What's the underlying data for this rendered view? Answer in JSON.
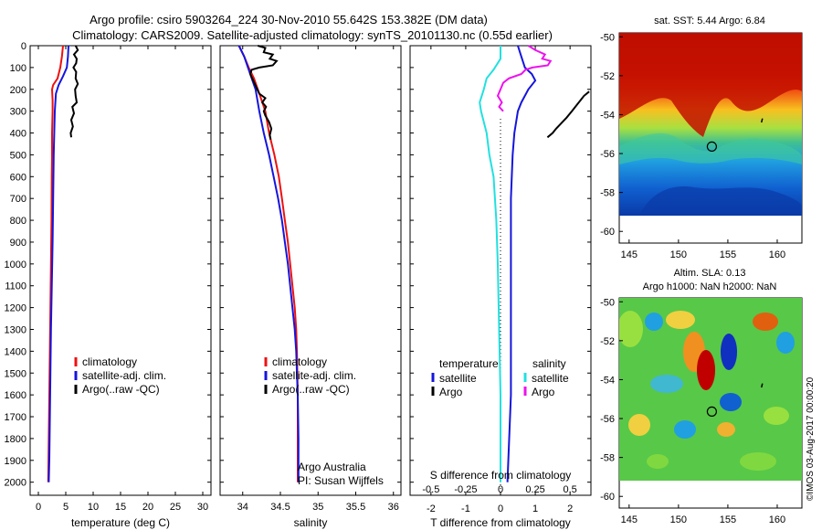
{
  "header": {
    "line1": "Argo profile: csiro 5903264_224 30-Nov-2010 55.642S 153.382E (DM data)",
    "line2": "Climatology: CARS2009. Satellite-adjusted climatology: synTS_20101130.nc (0.55d earlier)"
  },
  "colors": {
    "climatology": "#ee1111",
    "satellite": "#1515dd",
    "argo": "#000000",
    "temp_diff_satellite": "#1515dd",
    "salt_diff_satellite": "#22e0e0",
    "salt_diff_argo": "#ee11ee"
  },
  "chart_data": [
    {
      "id": "temperature",
      "type": "line",
      "xlabel": "temperature (deg C)",
      "ylabel": "",
      "xlim": [
        -1.5,
        31.5
      ],
      "ylim": [
        2060,
        0
      ],
      "xticks": [
        0,
        5,
        10,
        15,
        20,
        25,
        30
      ],
      "yticks": [
        0,
        100,
        200,
        300,
        400,
        500,
        600,
        700,
        800,
        900,
        1000,
        1100,
        1200,
        1300,
        1400,
        1500,
        1600,
        1700,
        1800,
        1900,
        2000
      ],
      "legend": {
        "position": "lower-middle",
        "entries": [
          "climatology",
          "satellite-adj. clim.",
          "Argo(..raw -QC)"
        ]
      },
      "series": [
        {
          "name": "climatology",
          "color_key": "climatology",
          "points": [
            [
              4.5,
              0
            ],
            [
              4.3,
              50
            ],
            [
              4.0,
              100
            ],
            [
              3.5,
              150
            ],
            [
              2.7,
              180
            ],
            [
              2.5,
              200
            ],
            [
              2.6,
              250
            ],
            [
              2.6,
              300
            ],
            [
              2.5,
              400
            ],
            [
              2.5,
              500
            ],
            [
              2.45,
              600
            ],
            [
              2.4,
              800
            ],
            [
              2.3,
              1000
            ],
            [
              2.2,
              1200
            ],
            [
              2.1,
              1400
            ],
            [
              2.0,
              1600
            ],
            [
              1.9,
              1800
            ],
            [
              1.8,
              2000
            ]
          ]
        },
        {
          "name": "satellite-adj. clim.",
          "color_key": "satellite",
          "points": [
            [
              5.5,
              0
            ],
            [
              5.4,
              50
            ],
            [
              5.2,
              100
            ],
            [
              4.5,
              140
            ],
            [
              3.7,
              180
            ],
            [
              3.2,
              220
            ],
            [
              3.0,
              300
            ],
            [
              2.9,
              400
            ],
            [
              2.8,
              500
            ],
            [
              2.7,
              700
            ],
            [
              2.6,
              900
            ],
            [
              2.45,
              1100
            ],
            [
              2.3,
              1300
            ],
            [
              2.2,
              1500
            ],
            [
              2.1,
              1700
            ],
            [
              2.0,
              1900
            ],
            [
              1.9,
              2000
            ]
          ]
        },
        {
          "name": "Argo(..raw -QC)",
          "color_key": "argo",
          "points": [
            [
              6.8,
              0
            ],
            [
              7.2,
              20
            ],
            [
              6.5,
              40
            ],
            [
              7.0,
              60
            ],
            [
              6.9,
              80
            ],
            [
              6.4,
              100
            ],
            [
              6.9,
              120
            ],
            [
              6.8,
              150
            ],
            [
              7.2,
              175
            ],
            [
              6.7,
              200
            ],
            [
              6.8,
              230
            ],
            [
              7.0,
              260
            ],
            [
              6.2,
              280
            ],
            [
              6.5,
              310
            ],
            [
              6.0,
              340
            ],
            [
              6.3,
              370
            ],
            [
              5.9,
              400
            ],
            [
              6.0,
              420
            ]
          ]
        }
      ]
    },
    {
      "id": "salinity",
      "type": "line",
      "xlabel": "salinity",
      "ylabel": "",
      "xlim": [
        33.7,
        36.1
      ],
      "ylim": [
        2060,
        0
      ],
      "xticks": [
        34,
        34.5,
        35,
        35.5,
        36
      ],
      "xticklabels": [
        "34",
        "34.5",
        "35",
        "35.5",
        "36"
      ],
      "legend": {
        "position": "lower-middle",
        "entries": [
          "climatology",
          "satellite-adj. clim.",
          "Argo(..raw -QC)"
        ]
      },
      "annotation": {
        "line1": "Argo Australia",
        "line2": "PI: Susan Wijffels"
      },
      "series": [
        {
          "name": "climatology",
          "color_key": "climatology",
          "points": [
            [
              33.95,
              0
            ],
            [
              34.02,
              50
            ],
            [
              34.08,
              100
            ],
            [
              34.15,
              150
            ],
            [
              34.2,
              200
            ],
            [
              34.25,
              250
            ],
            [
              34.3,
              300
            ],
            [
              34.35,
              400
            ],
            [
              34.42,
              500
            ],
            [
              34.48,
              600
            ],
            [
              34.52,
              700
            ],
            [
              34.56,
              800
            ],
            [
              34.6,
              900
            ],
            [
              34.63,
              1000
            ],
            [
              34.66,
              1100
            ],
            [
              34.69,
              1200
            ],
            [
              34.71,
              1300
            ],
            [
              34.72,
              1400
            ],
            [
              34.73,
              1600
            ],
            [
              34.73,
              1800
            ],
            [
              34.73,
              2000
            ]
          ]
        },
        {
          "name": "satellite-adj. clim.",
          "color_key": "satellite",
          "points": [
            [
              33.95,
              0
            ],
            [
              34.02,
              50
            ],
            [
              34.07,
              100
            ],
            [
              34.12,
              150
            ],
            [
              34.17,
              200
            ],
            [
              34.22,
              300
            ],
            [
              34.28,
              400
            ],
            [
              34.35,
              500
            ],
            [
              34.41,
              600
            ],
            [
              34.47,
              700
            ],
            [
              34.52,
              800
            ],
            [
              34.56,
              900
            ],
            [
              34.6,
              1000
            ],
            [
              34.63,
              1100
            ],
            [
              34.66,
              1200
            ],
            [
              34.69,
              1300
            ],
            [
              34.71,
              1400
            ],
            [
              34.72,
              1500
            ],
            [
              34.73,
              1600
            ],
            [
              34.74,
              1800
            ],
            [
              34.74,
              2000
            ]
          ]
        },
        {
          "name": "Argo(..raw -QC)",
          "color_key": "argo",
          "points": [
            [
              34.2,
              0
            ],
            [
              34.3,
              10
            ],
            [
              34.28,
              30
            ],
            [
              34.4,
              40
            ],
            [
              34.36,
              60
            ],
            [
              34.45,
              70
            ],
            [
              34.4,
              90
            ],
            [
              34.22,
              100
            ],
            [
              34.12,
              110
            ],
            [
              34.1,
              130
            ],
            [
              34.14,
              160
            ],
            [
              34.18,
              190
            ],
            [
              34.22,
              220
            ],
            [
              34.3,
              240
            ],
            [
              34.26,
              260
            ],
            [
              34.31,
              280
            ],
            [
              34.28,
              300
            ],
            [
              34.3,
              320
            ],
            [
              34.35,
              350
            ],
            [
              34.38,
              380
            ],
            [
              34.36,
              410
            ],
            [
              34.37,
              430
            ]
          ]
        }
      ]
    },
    {
      "id": "difference",
      "type": "line",
      "xlabel": "T difference from climatology",
      "toplabel": "S difference from climatology",
      "xlim": [
        -2.6,
        2.6
      ],
      "ylim": [
        2060,
        0
      ],
      "xticks": [
        -2,
        -1,
        0,
        1,
        2
      ],
      "s_ticks": [
        -0.5,
        -0.25,
        0,
        0.25,
        0.5
      ],
      "s_ticklabels": [
        "-0.5",
        "-0.25",
        "0",
        "0.25",
        "0.5"
      ],
      "legend": {
        "position": "lower-middle",
        "temperature_title": "temperature",
        "salinity_title": "salinity",
        "entries": [
          "satellite",
          "Argo",
          "satellite",
          "Argo"
        ]
      },
      "series": [
        {
          "name": "T satellite",
          "color_key": "temp_diff_satellite",
          "points": [
            [
              0.5,
              0
            ],
            [
              0.6,
              50
            ],
            [
              0.7,
              100
            ],
            [
              0.9,
              130
            ],
            [
              1.0,
              160
            ],
            [
              0.8,
              200
            ],
            [
              0.6,
              260
            ],
            [
              0.5,
              300
            ],
            [
              0.4,
              400
            ],
            [
              0.35,
              500
            ],
            [
              0.3,
              700
            ],
            [
              0.3,
              1000
            ],
            [
              0.3,
              1300
            ],
            [
              0.3,
              1600
            ],
            [
              0.25,
              1800
            ],
            [
              0.2,
              2000
            ]
          ]
        },
        {
          "name": "S satellite",
          "color_key": "salt_diff_satellite",
          "points": [
            [
              0.0,
              0
            ],
            [
              0.0,
              30
            ],
            [
              0.0,
              60
            ],
            [
              -0.05,
              110
            ],
            [
              -0.1,
              150
            ],
            [
              -0.12,
              200
            ],
            [
              -0.15,
              260
            ],
            [
              -0.14,
              300
            ],
            [
              -0.1,
              400
            ],
            [
              -0.08,
              500
            ],
            [
              -0.05,
              600
            ],
            [
              -0.03,
              800
            ],
            [
              -0.02,
              1000
            ],
            [
              -0.01,
              1300
            ],
            [
              0.0,
              1600
            ],
            [
              0.0,
              2000
            ]
          ]
        },
        {
          "name": "T Argo",
          "color_key": "argo",
          "points": [
            [
              2.55,
              210
            ],
            [
              2.4,
              230
            ],
            [
              2.3,
              250
            ],
            [
              2.2,
              270
            ],
            [
              2.05,
              300
            ],
            [
              1.9,
              330
            ],
            [
              1.75,
              355
            ],
            [
              1.6,
              380
            ],
            [
              1.5,
              400
            ],
            [
              1.35,
              420
            ]
          ]
        },
        {
          "name": "S Argo",
          "color_key": "salt_diff_argo",
          "points": [
            [
              0.2,
              0
            ],
            [
              0.25,
              20
            ],
            [
              0.32,
              40
            ],
            [
              0.3,
              60
            ],
            [
              0.36,
              70
            ],
            [
              0.34,
              90
            ],
            [
              0.23,
              100
            ],
            [
              0.18,
              110
            ],
            [
              0.15,
              130
            ],
            [
              0.06,
              150
            ],
            [
              0.02,
              170
            ],
            [
              0.0,
              200
            ],
            [
              -0.02,
              230
            ],
            [
              0.01,
              260
            ],
            [
              -0.01,
              280
            ],
            [
              0.02,
              300
            ]
          ]
        }
      ]
    },
    {
      "id": "sst_map",
      "type": "heatmap",
      "title": "sat. SST: 5.44  Argo: 6.84",
      "xlim": [
        144,
        162.5
      ],
      "ylim": [
        -60.6,
        -49.8
      ],
      "xticks": [
        145,
        150,
        155,
        160
      ],
      "yticks": [
        -50,
        -52,
        -54,
        -56,
        -58,
        -60
      ],
      "data_extent_south": -60,
      "marker": {
        "lon": 153.382,
        "lat": -55.642
      },
      "track": [
        [
          158.4,
          -54.4
        ],
        [
          158.5,
          -54.2
        ]
      ]
    },
    {
      "id": "sla_map",
      "type": "heatmap",
      "title": "Altim. SLA: 0.13",
      "subtitle": "Argo h1000: NaN h2000: NaN",
      "xlim": [
        144,
        162.5
      ],
      "ylim": [
        -60.6,
        -49.8
      ],
      "xticks": [
        145,
        150,
        155,
        160
      ],
      "yticks": [
        -50,
        -52,
        -54,
        -56,
        -58,
        -60
      ],
      "data_extent_south": -60,
      "marker": {
        "lon": 153.382,
        "lat": -55.642
      },
      "track": [
        [
          158.4,
          -54.4
        ],
        [
          158.5,
          -54.2
        ]
      ]
    }
  ],
  "watermark": "©IMOS 03-Aug-2017 00:00:20"
}
